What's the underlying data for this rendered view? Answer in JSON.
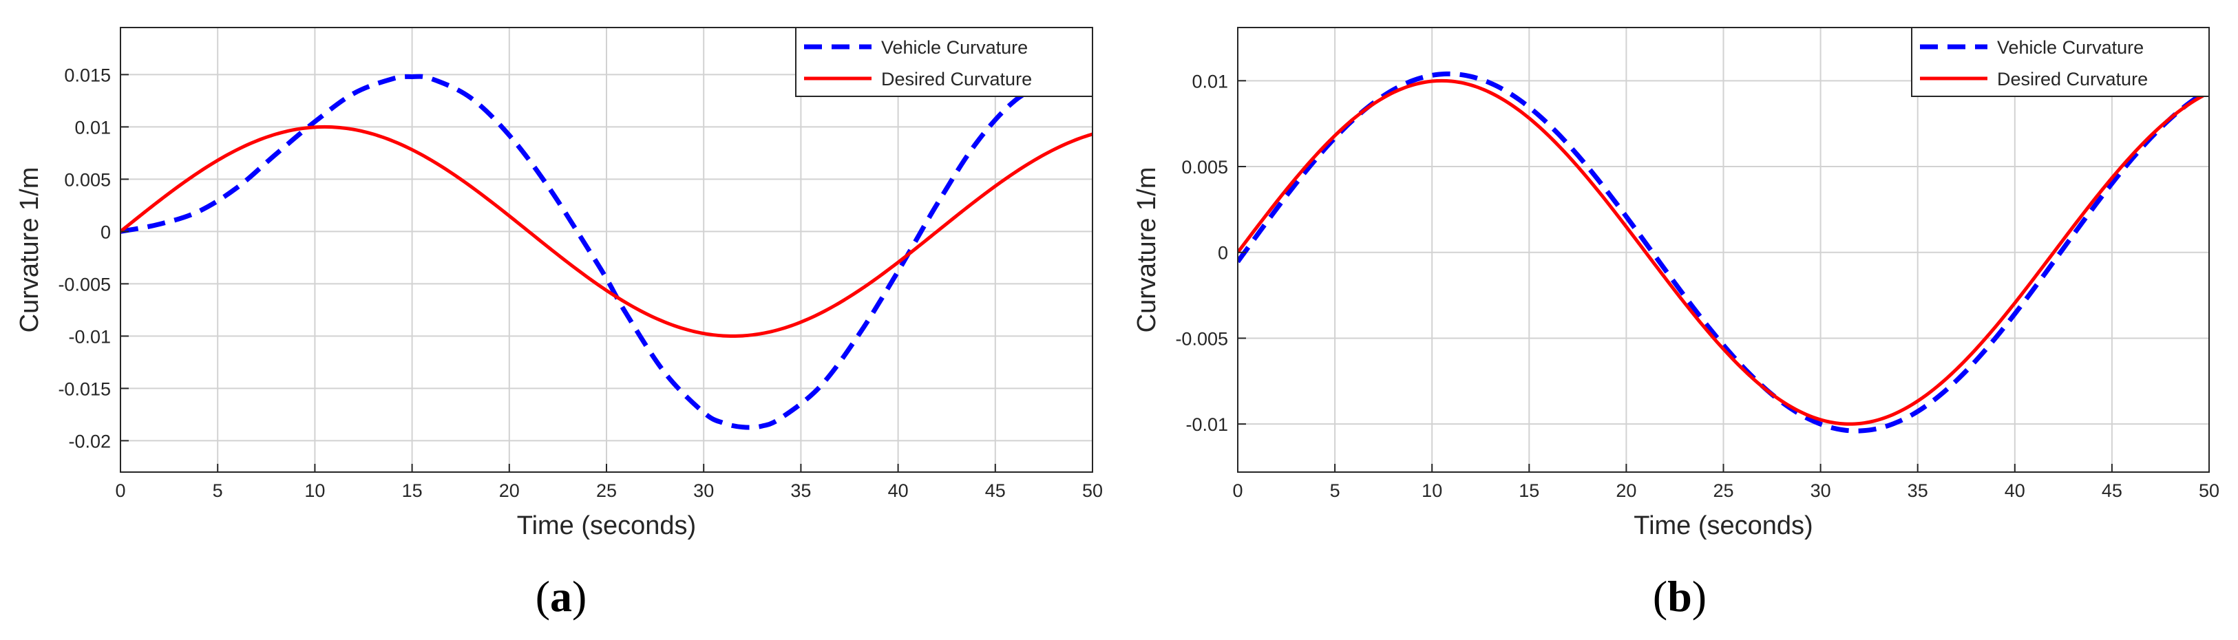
{
  "colors": {
    "vehicle": "#0000ff",
    "desired": "#ff0000",
    "grid": "#d2d2d2",
    "axis": "#262626"
  },
  "chart_data": [
    {
      "id": "a",
      "type": "line",
      "panel_label": "a",
      "xlabel": "Time (seconds)",
      "ylabel": "Curvature 1/m",
      "xlim": [
        0,
        50
      ],
      "ylim": [
        -0.023,
        0.0195
      ],
      "xticks": [
        0,
        5,
        10,
        15,
        20,
        25,
        30,
        35,
        40,
        45,
        50
      ],
      "yticks": [
        -0.02,
        -0.015,
        -0.01,
        -0.005,
        0,
        0.005,
        0.01,
        0.015
      ],
      "xtick_labels": [
        "0",
        "5",
        "10",
        "15",
        "20",
        "25",
        "30",
        "35",
        "40",
        "45",
        "50"
      ],
      "ytick_labels": [
        "-0.02",
        "-0.015",
        "-0.01",
        "-0.005",
        "0",
        "0.005",
        "0.01",
        "0.015"
      ],
      "grid": true,
      "legend_position": "top-right",
      "series": [
        {
          "name": "Vehicle Curvature",
          "style": "dashed",
          "color": "#0000ff",
          "x": [
            0,
            2,
            4,
            6,
            8,
            10,
            12,
            14,
            15,
            16,
            18,
            20,
            22,
            24,
            25,
            26,
            28,
            30,
            31,
            32,
            33,
            34,
            36,
            38,
            40,
            42,
            44,
            46,
            48
          ],
          "y": [
            0,
            0.0007,
            0.0019,
            0.0042,
            0.0074,
            0.0105,
            0.0132,
            0.0146,
            0.0148,
            0.0146,
            0.0128,
            0.0092,
            0.0043,
            -0.0015,
            -0.0045,
            -0.0078,
            -0.0135,
            -0.0173,
            -0.0183,
            -0.0187,
            -0.0186,
            -0.0178,
            -0.0148,
            -0.0098,
            -0.0038,
            0.0026,
            0.0084,
            0.0125,
            0.0146
          ]
        },
        {
          "name": "Desired Curvature",
          "style": "solid",
          "color": "#ff0000",
          "fn": "sine",
          "amplitude": 0.01,
          "period": 42,
          "x_start": 0,
          "x_end": 50
        }
      ]
    },
    {
      "id": "b",
      "type": "line",
      "panel_label": "b",
      "xlabel": "Time (seconds)",
      "ylabel": "Curvature 1/m",
      "xlim": [
        0,
        50
      ],
      "ylim": [
        -0.0128,
        0.0131
      ],
      "xticks": [
        0,
        5,
        10,
        15,
        20,
        25,
        30,
        35,
        40,
        45,
        50
      ],
      "yticks": [
        -0.01,
        -0.005,
        0,
        0.005,
        0.01
      ],
      "xtick_labels": [
        "0",
        "5",
        "10",
        "15",
        "20",
        "25",
        "30",
        "35",
        "40",
        "45",
        "50"
      ],
      "ytick_labels": [
        "-0.01",
        "-0.005",
        "0",
        "0.005",
        "0.01"
      ],
      "grid": true,
      "legend_position": "top-right",
      "series": [
        {
          "name": "Vehicle Curvature",
          "style": "dashed",
          "color": "#0000ff",
          "fn": "sine",
          "amplitude": 0.0104,
          "period": 42,
          "phase_shift": 0.35,
          "x_start": 0,
          "x_end": 50
        },
        {
          "name": "Desired Curvature",
          "style": "solid",
          "color": "#ff0000",
          "fn": "sine",
          "amplitude": 0.01,
          "period": 42,
          "x_start": 0,
          "x_end": 50
        }
      ]
    }
  ]
}
